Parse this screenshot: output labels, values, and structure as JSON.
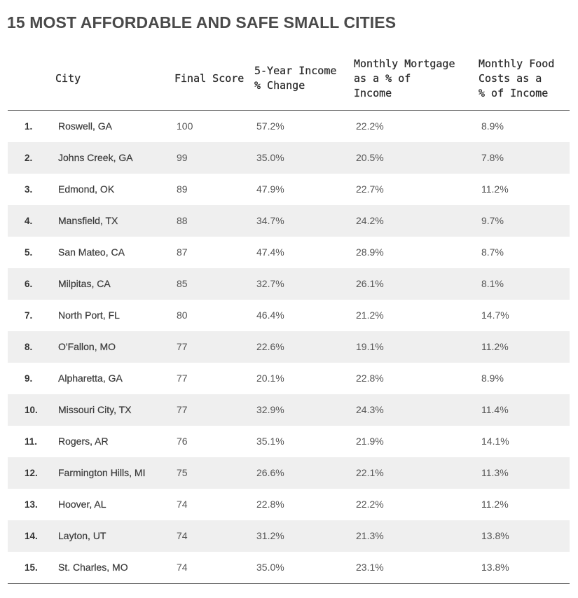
{
  "title": "15 MOST AFFORDABLE AND SAFE SMALL CITIES",
  "columns": {
    "rank": "",
    "city": "City",
    "final_score": "Final Score",
    "income_change": "5-Year Income\n% Change",
    "mortgage": "Monthly Mortgage\nas a % of\nIncome",
    "food": "Monthly Food\nCosts as a\n% of Income"
  },
  "rows": [
    {
      "rank": "1.",
      "city": "Roswell, GA",
      "score": "100",
      "income": "57.2%",
      "mortgage": "22.2%",
      "food": "8.9%"
    },
    {
      "rank": "2.",
      "city": "Johns Creek, GA",
      "score": "99",
      "income": "35.0%",
      "mortgage": "20.5%",
      "food": "7.8%"
    },
    {
      "rank": "3.",
      "city": "Edmond, OK",
      "score": "89",
      "income": "47.9%",
      "mortgage": "22.7%",
      "food": "11.2%"
    },
    {
      "rank": "4.",
      "city": "Mansfield, TX",
      "score": "88",
      "income": "34.7%",
      "mortgage": "24.2%",
      "food": "9.7%"
    },
    {
      "rank": "5.",
      "city": "San Mateo, CA",
      "score": "87",
      "income": "47.4%",
      "mortgage": "28.9%",
      "food": "8.7%"
    },
    {
      "rank": "6.",
      "city": "Milpitas, CA",
      "score": "85",
      "income": "32.7%",
      "mortgage": "26.1%",
      "food": "8.1%"
    },
    {
      "rank": "7.",
      "city": "North Port, FL",
      "score": "80",
      "income": "46.4%",
      "mortgage": "21.2%",
      "food": "14.7%"
    },
    {
      "rank": "8.",
      "city": "O'Fallon, MO",
      "score": "77",
      "income": "22.6%",
      "mortgage": "19.1%",
      "food": "11.2%"
    },
    {
      "rank": "9.",
      "city": "Alpharetta, GA",
      "score": "77",
      "income": "20.1%",
      "mortgage": "22.8%",
      "food": "8.9%"
    },
    {
      "rank": "10.",
      "city": "Missouri City, TX",
      "score": "77",
      "income": "32.9%",
      "mortgage": "24.3%",
      "food": "11.4%"
    },
    {
      "rank": "11.",
      "city": "Rogers, AR",
      "score": "76",
      "income": "35.1%",
      "mortgage": "21.9%",
      "food": "14.1%"
    },
    {
      "rank": "12.",
      "city": "Farmington Hills, MI",
      "score": "75",
      "income": "26.6%",
      "mortgage": "22.1%",
      "food": "11.3%"
    },
    {
      "rank": "13.",
      "city": "Hoover, AL",
      "score": "74",
      "income": "22.8%",
      "mortgage": "22.2%",
      "food": "11.2%"
    },
    {
      "rank": "14.",
      "city": "Layton, UT",
      "score": "74",
      "income": "31.2%",
      "mortgage": "21.3%",
      "food": "13.8%"
    },
    {
      "rank": "15.",
      "city": "St. Charles, MO",
      "score": "74",
      "income": "35.0%",
      "mortgage": "23.1%",
      "food": "13.8%"
    }
  ],
  "colors": {
    "title": "#4a4a4a",
    "row_shade": "#efefef",
    "rule": "#555555"
  }
}
